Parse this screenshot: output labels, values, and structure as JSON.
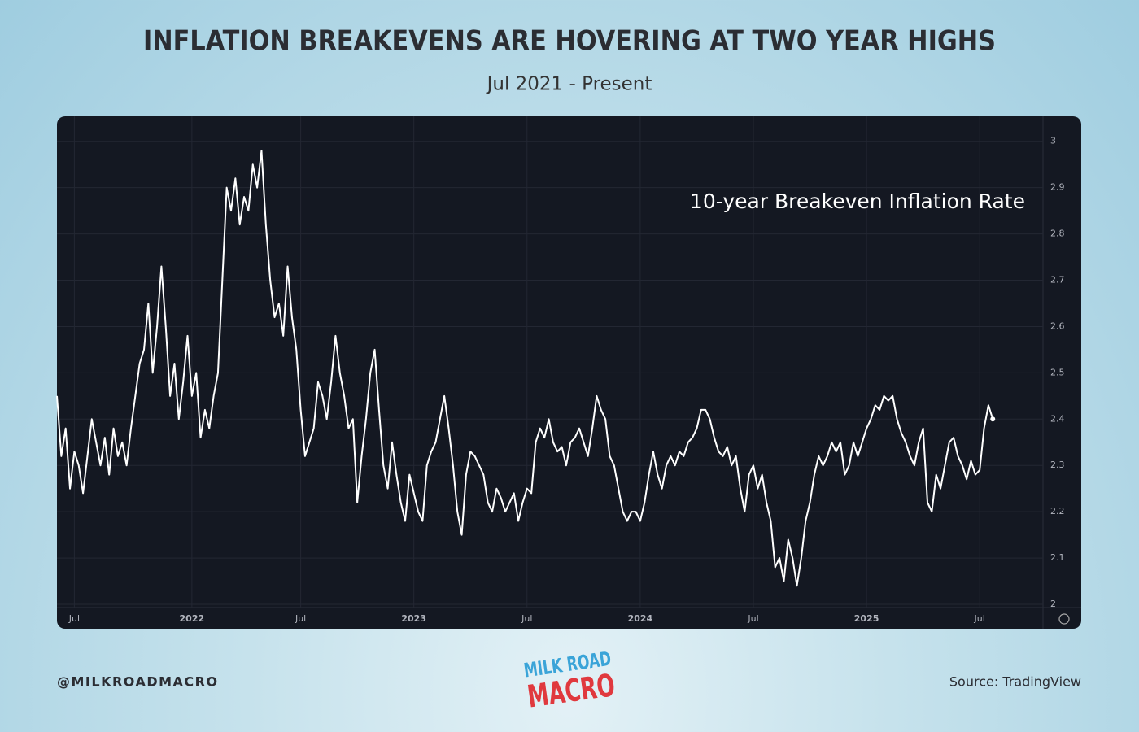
{
  "chart_data": {
    "type": "line",
    "title": "INFLATION BREAKEVENS ARE HOVERING AT TWO YEAR HIGHS",
    "subtitle": "Jul 2021 - Present",
    "annotation": "10-year Breakeven Inflation Rate",
    "handle": "@MILKROADMACRO",
    "source": "Source: TradingView",
    "logo": [
      "MILK ROAD",
      "MACRO"
    ],
    "categories": [
      null,
      null,
      null,
      null,
      "Jul",
      null,
      null,
      null,
      null,
      null,
      null,
      null,
      null,
      null,
      null,
      null,
      null,
      null,
      null,
      null,
      null,
      null,
      null,
      null,
      null,
      null,
      null,
      null,
      null,
      null,
      null,
      "2022",
      null,
      null,
      null,
      null,
      null,
      null,
      null,
      null,
      null,
      null,
      null,
      null,
      null,
      null,
      null,
      null,
      null,
      null,
      null,
      null,
      null,
      null,
      null,
      null,
      "Jul",
      null,
      null,
      null,
      null,
      null,
      null,
      null,
      null,
      null,
      null,
      null,
      null,
      null,
      null,
      null,
      null,
      null,
      null,
      null,
      null,
      null,
      null,
      null,
      null,
      null,
      "2023",
      null,
      null,
      null,
      null,
      null,
      null,
      null,
      null,
      null,
      null,
      null,
      null,
      null,
      null,
      null,
      null,
      null,
      null,
      null,
      null,
      null,
      null,
      null,
      null,
      null,
      "Jul",
      null,
      null,
      null,
      null,
      null,
      null,
      null,
      null,
      null,
      null,
      null,
      null,
      null,
      null,
      null,
      null,
      null,
      null,
      null,
      null,
      null,
      null,
      null,
      null,
      null,
      "2024",
      null,
      null,
      null,
      null,
      null,
      null,
      null,
      null,
      null,
      null,
      null,
      null,
      null,
      null,
      null,
      null,
      null,
      null,
      null,
      null,
      null,
      null,
      null,
      null,
      null,
      "Jul",
      null,
      null,
      null,
      null,
      null,
      null,
      null,
      null,
      null,
      null,
      null,
      null,
      null,
      null,
      null,
      null,
      null,
      null,
      null,
      null,
      null,
      null,
      null,
      null,
      null,
      "2025",
      null,
      null,
      null,
      null,
      null,
      null,
      null,
      null,
      null,
      null,
      null,
      null,
      null,
      null,
      null,
      null,
      null,
      null,
      null,
      null,
      null,
      null,
      null,
      null,
      null,
      "Jul",
      null,
      null,
      null
    ],
    "series": [
      {
        "name": "10-year Breakeven Inflation Rate",
        "color": "#ffffff",
        "values": [
          2.45,
          2.32,
          2.38,
          2.25,
          2.33,
          2.3,
          2.24,
          2.32,
          2.4,
          2.35,
          2.3,
          2.36,
          2.28,
          2.38,
          2.32,
          2.35,
          2.3,
          2.38,
          2.45,
          2.52,
          2.55,
          2.65,
          2.5,
          2.6,
          2.73,
          2.6,
          2.45,
          2.52,
          2.4,
          2.48,
          2.58,
          2.45,
          2.5,
          2.36,
          2.42,
          2.38,
          2.45,
          2.5,
          2.7,
          2.9,
          2.85,
          2.92,
          2.82,
          2.88,
          2.85,
          2.95,
          2.9,
          2.98,
          2.82,
          2.7,
          2.62,
          2.65,
          2.58,
          2.73,
          2.62,
          2.55,
          2.42,
          2.32,
          2.35,
          2.38,
          2.48,
          2.45,
          2.4,
          2.48,
          2.58,
          2.5,
          2.45,
          2.38,
          2.4,
          2.22,
          2.32,
          2.4,
          2.5,
          2.55,
          2.42,
          2.3,
          2.25,
          2.35,
          2.28,
          2.22,
          2.18,
          2.28,
          2.24,
          2.2,
          2.18,
          2.3,
          2.33,
          2.35,
          2.4,
          2.45,
          2.38,
          2.3,
          2.2,
          2.15,
          2.28,
          2.33,
          2.32,
          2.3,
          2.28,
          2.22,
          2.2,
          2.25,
          2.23,
          2.2,
          2.22,
          2.24,
          2.18,
          2.22,
          2.25,
          2.24,
          2.35,
          2.38,
          2.36,
          2.4,
          2.35,
          2.33,
          2.34,
          2.3,
          2.35,
          2.36,
          2.38,
          2.35,
          2.32,
          2.38,
          2.45,
          2.42,
          2.4,
          2.32,
          2.3,
          2.25,
          2.2,
          2.18,
          2.2,
          2.2,
          2.18,
          2.22,
          2.28,
          2.33,
          2.28,
          2.25,
          2.3,
          2.32,
          2.3,
          2.33,
          2.32,
          2.35,
          2.36,
          2.38,
          2.42,
          2.42,
          2.4,
          2.36,
          2.33,
          2.32,
          2.34,
          2.3,
          2.32,
          2.25,
          2.2,
          2.28,
          2.3,
          2.25,
          2.28,
          2.22,
          2.18,
          2.08,
          2.1,
          2.05,
          2.14,
          2.1,
          2.04,
          2.1,
          2.18,
          2.22,
          2.28,
          2.32,
          2.3,
          2.32,
          2.35,
          2.33,
          2.35,
          2.28,
          2.3,
          2.35,
          2.32,
          2.35,
          2.38,
          2.4,
          2.43,
          2.42,
          2.45,
          2.44,
          2.45,
          2.4,
          2.37,
          2.35,
          2.32,
          2.3,
          2.35,
          2.38,
          2.22,
          2.2,
          2.28,
          2.25,
          2.3,
          2.35,
          2.36,
          2.32,
          2.3,
          2.27,
          2.31,
          2.28,
          2.29,
          2.38,
          2.43,
          2.4
        ]
      }
    ],
    "ylim": [
      1.993,
      3.054
    ],
    "yticks": [
      2,
      2.1,
      2.2,
      2.3,
      2.4,
      2.5,
      2.6,
      2.7,
      2.8,
      2.9,
      3
    ],
    "grid": true
  }
}
